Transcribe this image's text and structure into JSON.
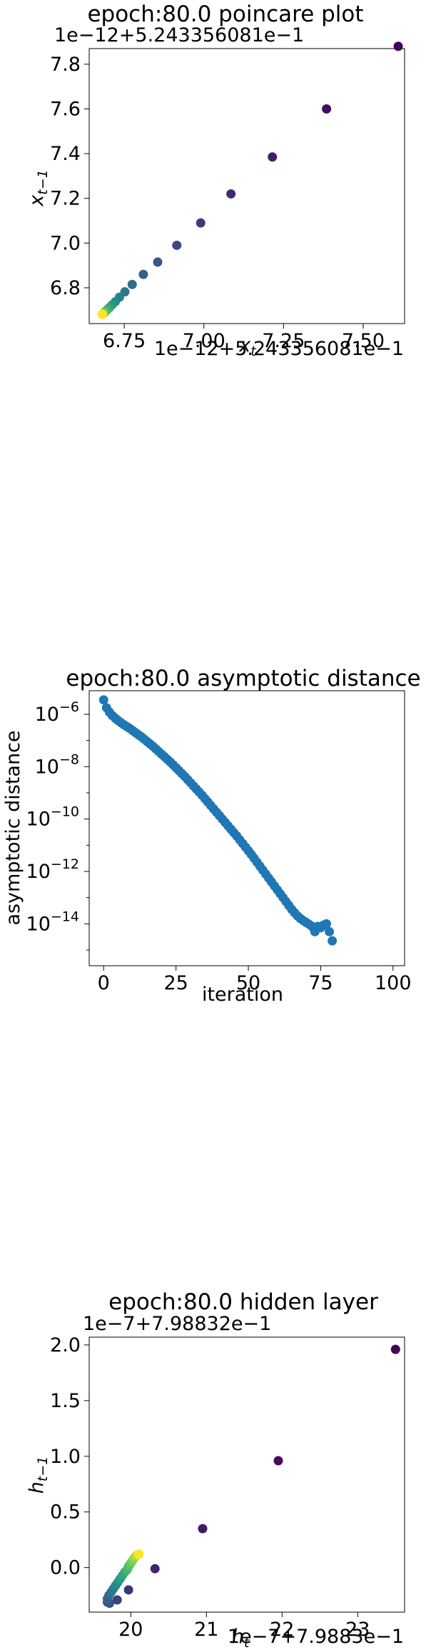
{
  "chart_data": [
    {
      "type": "scatter",
      "title": "epoch:80.0 poincare plot",
      "xlabel": "x_t",
      "ylabel": "x_{t−1}",
      "x_offset_label": "1e−12+5.243356081e−1",
      "y_offset_label": "1e−12+5.243356081e−1",
      "xlim": [
        6.64,
        7.63
      ],
      "ylim": [
        6.64,
        7.87
      ],
      "xticks": [
        6.75,
        7.0,
        7.25,
        7.5
      ],
      "xtick_labels": [
        "6.75",
        "7.00",
        "7.25",
        "7.50"
      ],
      "yticks": [
        6.8,
        7.0,
        7.2,
        7.4,
        7.6,
        7.8
      ],
      "ytick_labels": [
        "6.8",
        "7.0",
        "7.2",
        "7.4",
        "7.6",
        "7.8"
      ],
      "colormap": [
        "#440154",
        "#3b528b",
        "#21918c",
        "#5ec962",
        "#fde725"
      ],
      "points": [
        {
          "x": 7.61,
          "y": 7.88
        },
        {
          "x": 7.385,
          "y": 7.6
        },
        {
          "x": 7.215,
          "y": 7.385
        },
        {
          "x": 7.085,
          "y": 7.22
        },
        {
          "x": 6.99,
          "y": 7.09
        },
        {
          "x": 6.915,
          "y": 6.99
        },
        {
          "x": 6.855,
          "y": 6.915
        },
        {
          "x": 6.81,
          "y": 6.86
        },
        {
          "x": 6.775,
          "y": 6.815
        },
        {
          "x": 6.752,
          "y": 6.782
        },
        {
          "x": 6.735,
          "y": 6.758
        },
        {
          "x": 6.722,
          "y": 6.738
        },
        {
          "x": 6.712,
          "y": 6.724
        },
        {
          "x": 6.704,
          "y": 6.712
        },
        {
          "x": 6.698,
          "y": 6.704
        },
        {
          "x": 6.693,
          "y": 6.697
        },
        {
          "x": 6.69,
          "y": 6.692
        },
        {
          "x": 6.687,
          "y": 6.689
        },
        {
          "x": 6.685,
          "y": 6.686
        },
        {
          "x": 6.683,
          "y": 6.684
        },
        {
          "x": 6.682,
          "y": 6.683
        },
        {
          "x": 6.681,
          "y": 6.682
        },
        {
          "x": 6.681,
          "y": 6.681
        },
        {
          "x": 6.681,
          "y": 6.681
        }
      ]
    },
    {
      "type": "scatter",
      "title": "epoch:80.0 asymptotic distance",
      "xlabel": "iteration",
      "ylabel": "asymptotic distance",
      "yscale": "log",
      "xlim": [
        -5,
        104
      ],
      "ylim_log10": [
        -15.6,
        -5.1
      ],
      "xticks": [
        0,
        25,
        50,
        75,
        100
      ],
      "xtick_labels": [
        "0",
        "25",
        "50",
        "75",
        "100"
      ],
      "yticks_log10": [
        -6,
        -8,
        -10,
        -12,
        -14
      ],
      "color": "#1f77b4",
      "log10_values": [
        -5.45,
        -5.75,
        -5.92,
        -6.05,
        -6.15,
        -6.24,
        -6.32,
        -6.4,
        -6.47,
        -6.54,
        -6.62,
        -6.7,
        -6.78,
        -6.86,
        -6.95,
        -7.04,
        -7.13,
        -7.22,
        -7.32,
        -7.42,
        -7.52,
        -7.62,
        -7.72,
        -7.82,
        -7.93,
        -8.04,
        -8.15,
        -8.26,
        -8.37,
        -8.49,
        -8.61,
        -8.73,
        -8.85,
        -8.97,
        -9.09,
        -9.22,
        -9.35,
        -9.48,
        -9.61,
        -9.74,
        -9.87,
        -10.0,
        -10.13,
        -10.26,
        -10.39,
        -10.52,
        -10.65,
        -10.79,
        -10.93,
        -11.07,
        -11.21,
        -11.35,
        -11.5,
        -11.65,
        -11.8,
        -11.95,
        -12.1,
        -12.25,
        -12.4,
        -12.55,
        -12.7,
        -12.85,
        -13.0,
        -13.15,
        -13.3,
        -13.45,
        -13.58,
        -13.7,
        -13.8,
        -13.88,
        -13.95,
        -14.02,
        -14.1,
        -14.3,
        -14.1,
        -14.15,
        -14.05,
        -14.0,
        -14.3,
        -14.65
      ]
    },
    {
      "type": "scatter",
      "title": "epoch:80.0 hidden layer",
      "xlabel": "h_t",
      "ylabel": "h_{t−1}",
      "x_offset_label": "1e−7+7.9883e−1",
      "y_offset_label": "1e−7+7.98832e−1",
      "xlim": [
        19.45,
        23.62
      ],
      "ylim": [
        -0.4,
        2.07
      ],
      "xticks": [
        20,
        21,
        22,
        23
      ],
      "xtick_labels": [
        "20",
        "21",
        "22",
        "23"
      ],
      "yticks": [
        0.0,
        0.5,
        1.0,
        1.5,
        2.0
      ],
      "ytick_labels": [
        "0.0",
        "0.5",
        "1.0",
        "1.5",
        "2.0"
      ],
      "colormap": [
        "#440154",
        "#3b528b",
        "#21918c",
        "#5ec962",
        "#fde725"
      ],
      "points": [
        {
          "x": 23.5,
          "y": 1.96
        },
        {
          "x": 21.95,
          "y": 0.96
        },
        {
          "x": 20.95,
          "y": 0.35
        },
        {
          "x": 20.32,
          "y": -0.01
        },
        {
          "x": 19.97,
          "y": -0.2
        },
        {
          "x": 19.82,
          "y": -0.29
        },
        {
          "x": 19.72,
          "y": -0.32
        },
        {
          "x": 19.69,
          "y": -0.31
        },
        {
          "x": 19.69,
          "y": -0.28
        },
        {
          "x": 19.71,
          "y": -0.25
        },
        {
          "x": 19.74,
          "y": -0.22
        },
        {
          "x": 19.77,
          "y": -0.19
        },
        {
          "x": 19.8,
          "y": -0.16
        },
        {
          "x": 19.83,
          "y": -0.13
        },
        {
          "x": 19.86,
          "y": -0.1
        },
        {
          "x": 19.89,
          "y": -0.07
        },
        {
          "x": 19.92,
          "y": -0.04
        },
        {
          "x": 19.95,
          "y": -0.02
        },
        {
          "x": 19.97,
          "y": 0.01
        },
        {
          "x": 19.99,
          "y": 0.03
        },
        {
          "x": 20.01,
          "y": 0.05
        },
        {
          "x": 20.03,
          "y": 0.07
        },
        {
          "x": 20.05,
          "y": 0.09
        },
        {
          "x": 20.07,
          "y": 0.105
        },
        {
          "x": 20.09,
          "y": 0.115
        },
        {
          "x": 20.1,
          "y": 0.12
        },
        {
          "x": 20.11,
          "y": 0.122
        }
      ]
    }
  ]
}
